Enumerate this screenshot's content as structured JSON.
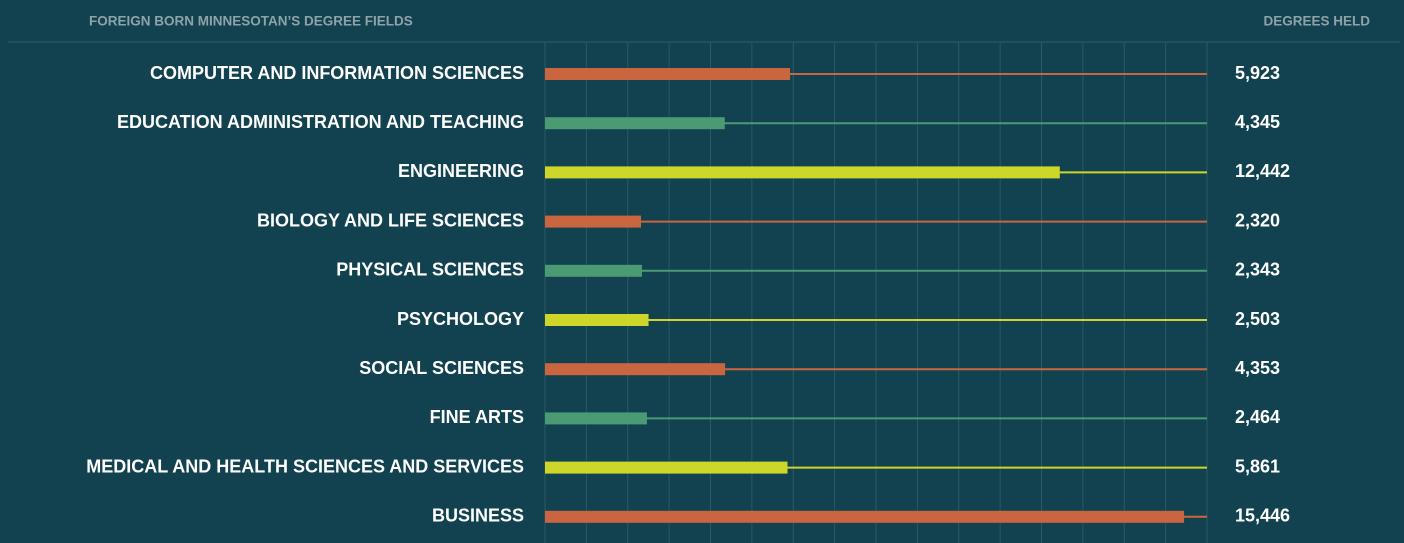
{
  "chart_data": {
    "type": "bar",
    "title": "FOREIGN BORN MINNESOTAN’S DEGREE FIELDS",
    "value_axis_label": "DEGREES HELD",
    "categories": [
      "COMPUTER AND INFORMATION SCIENCES",
      "EDUCATION ADMINISTRATION AND TEACHING",
      "ENGINEERING",
      "BIOLOGY AND LIFE SCIENCES",
      "PHYSICAL SCIENCES",
      "PSYCHOLOGY",
      "SOCIAL SCIENCES",
      "FINE ARTS",
      "MEDICAL AND HEALTH SCIENCES AND SERVICES",
      "BUSINESS"
    ],
    "values": [
      5923,
      4345,
      12442,
      2320,
      2343,
      2503,
      4353,
      2464,
      5861,
      15446
    ],
    "value_labels": [
      "5,923",
      "4,345",
      "12,442",
      "2,320",
      "2,343",
      "2,503",
      "4,353",
      "2,464",
      "5,861",
      "15,446"
    ],
    "colors": [
      "#c9663f",
      "#4a9a74",
      "#cfd62a"
    ],
    "xlim": [
      0,
      16000
    ],
    "xticks": [
      0,
      1000,
      2000,
      3000,
      4000,
      5000,
      6000,
      7000,
      8000,
      9000,
      10000,
      11000,
      12000,
      13000,
      14000,
      15000,
      16000
    ],
    "grid": true
  }
}
